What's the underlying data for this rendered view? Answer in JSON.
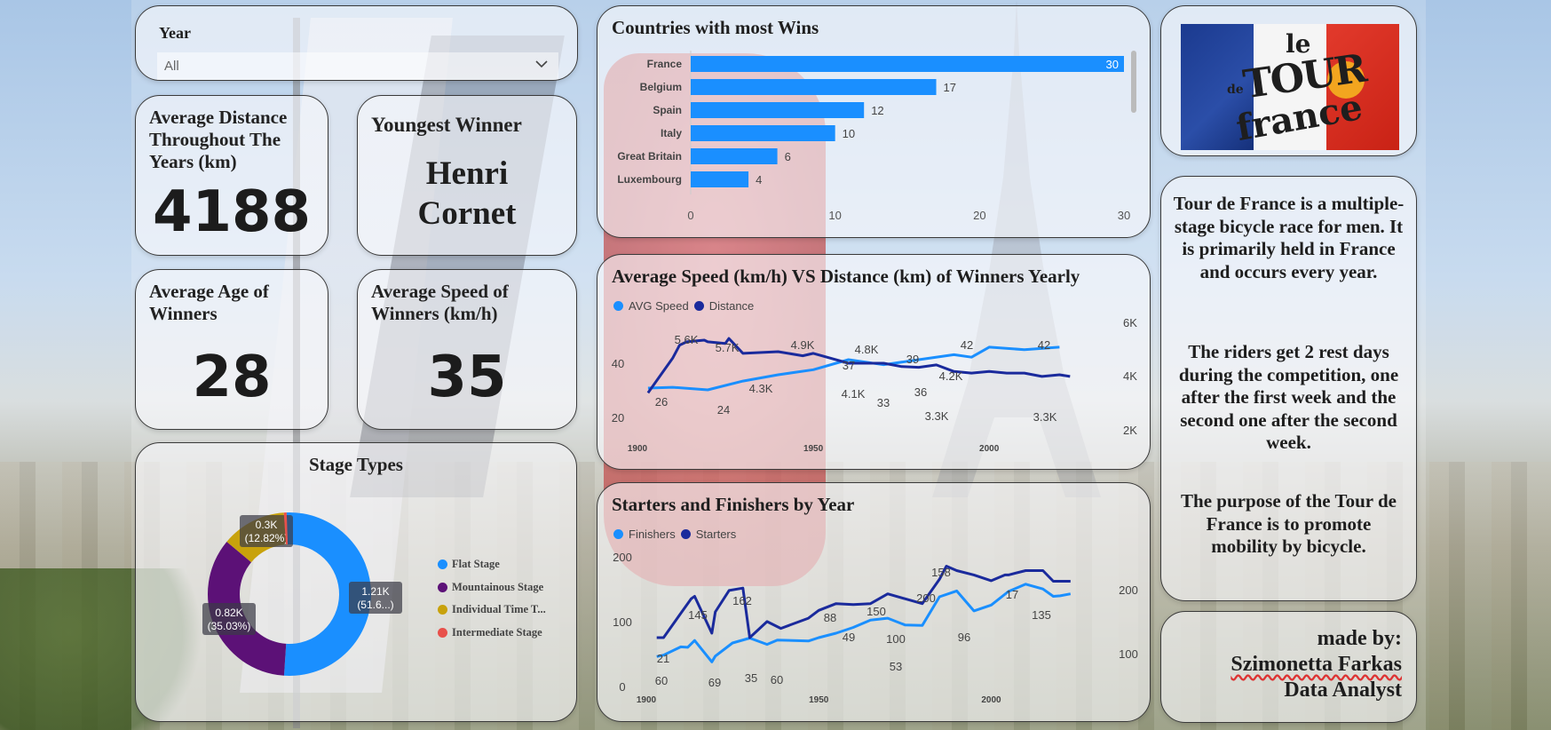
{
  "slicer": {
    "label": "Year",
    "value": "All"
  },
  "kpis": {
    "avg_distance": {
      "title": "Average Distance Throughout The Years (km)",
      "value": "4188"
    },
    "youngest_winner": {
      "title": "Youngest Winner",
      "value_line1": "Henri",
      "value_line2": "Cornet"
    },
    "avg_age": {
      "title": "Average Age of Winners",
      "value": "28"
    },
    "avg_speed": {
      "title": "Average Speed of Winners (km/h)",
      "value": "35"
    }
  },
  "stage_types": {
    "title": "Stage Types",
    "legend": [
      "Flat Stage",
      "Mountainous Stage",
      "Individual Time T...",
      "Intermediate Stage"
    ],
    "colors": [
      "#1a8fff",
      "#5c1177",
      "#c8a20c",
      "#e8504a"
    ],
    "slices": [
      {
        "name": "Flat Stage",
        "value": 51.6,
        "label_l1": "1.21K",
        "label_l2": "(51.6...)"
      },
      {
        "name": "Mountainous Stage",
        "value": 35.03,
        "label_l1": "0.82K",
        "label_l2": "(35.03%)"
      },
      {
        "name": "Individual Time Trial",
        "value": 12.82,
        "label_l1": "0.3K",
        "label_l2": "(12.82%)"
      },
      {
        "name": "Intermediate Stage",
        "value": 0.55,
        "label_l1": "",
        "label_l2": ""
      }
    ]
  },
  "wins": {
    "title": "Countries with most Wins",
    "categories": [
      "France",
      "Belgium",
      "Spain",
      "Italy",
      "Great Britain",
      "Luxembourg"
    ],
    "values": [
      30,
      17,
      12,
      10,
      6,
      4
    ],
    "value_labels": [
      "30",
      "17",
      "12",
      "10",
      "6",
      "4"
    ],
    "ticks": [
      "0",
      "10",
      "20",
      "30"
    ],
    "color": "#1a8fff"
  },
  "speed_distance": {
    "title": "Average Speed (km/h) VS Distance (km) of Winners Yearly",
    "legend": [
      "AVG Speed",
      "Distance"
    ],
    "colors": [
      "#1a8fff",
      "#1a2a9c"
    ],
    "left_ticks": [
      "40",
      "20"
    ],
    "right_ticks": [
      "6K",
      "4K",
      "2K"
    ],
    "x_ticks": [
      "1900",
      "1950",
      "2000"
    ],
    "labels": [
      "26",
      "24",
      "4.3K",
      "5.6K",
      "5.7K",
      "4.9K",
      "37",
      "4.8K",
      "39",
      "42",
      "42",
      "4.1K",
      "33",
      "36",
      "4.2K",
      "3.3K",
      "3.3K"
    ],
    "speed_points": [
      [
        1903,
        25.7
      ],
      [
        1910,
        26
      ],
      [
        1920,
        25
      ],
      [
        1930,
        28.5
      ],
      [
        1940,
        31
      ],
      [
        1950,
        33
      ],
      [
        1960,
        37
      ],
      [
        1970,
        35
      ],
      [
        1980,
        37
      ],
      [
        1990,
        39
      ],
      [
        1995,
        38
      ],
      [
        2000,
        42
      ],
      [
        2010,
        41
      ],
      [
        2020,
        42
      ]
    ],
    "distance_points": [
      [
        1903,
        2400
      ],
      [
        1905,
        3000
      ],
      [
        1910,
        4500
      ],
      [
        1912,
        5300
      ],
      [
        1914,
        5500
      ],
      [
        1919,
        5600
      ],
      [
        1920,
        5500
      ],
      [
        1925,
        5400
      ],
      [
        1926,
        5700
      ],
      [
        1930,
        4800
      ],
      [
        1940,
        4900
      ],
      [
        1947,
        4650
      ],
      [
        1950,
        4800
      ],
      [
        1955,
        4500
      ],
      [
        1960,
        4200
      ],
      [
        1965,
        4200
      ],
      [
        1970,
        4200
      ],
      [
        1975,
        4000
      ],
      [
        1980,
        3950
      ],
      [
        1985,
        4100
      ],
      [
        1990,
        3700
      ],
      [
        1995,
        3600
      ],
      [
        2000,
        3700
      ],
      [
        2005,
        3600
      ],
      [
        2010,
        3600
      ],
      [
        2015,
        3400
      ],
      [
        2020,
        3500
      ],
      [
        2023,
        3400
      ]
    ]
  },
  "starters": {
    "title": "Starters and Finishers by Year",
    "legend": [
      "Finishers",
      "Starters"
    ],
    "colors": [
      "#1a8fff",
      "#1a2a9c"
    ],
    "left_ticks": [
      "200",
      "100",
      "0"
    ],
    "right_ticks": [
      "200",
      "100"
    ],
    "x_ticks": [
      "1900",
      "1950",
      "2000"
    ],
    "labels": [
      "60",
      "21",
      "145",
      "69",
      "162",
      "35",
      "60",
      "88",
      "150",
      "49",
      "100",
      "53",
      "158",
      "200",
      "96",
      "17",
      "135"
    ],
    "finisher_points": [
      [
        1903,
        21
      ],
      [
        1905,
        24
      ],
      [
        1910,
        41
      ],
      [
        1912,
        40
      ],
      [
        1914,
        54
      ],
      [
        1919,
        10
      ],
      [
        1920,
        22
      ],
      [
        1925,
        49
      ],
      [
        1930,
        59
      ],
      [
        1935,
        46
      ],
      [
        1938,
        55
      ],
      [
        1947,
        53
      ],
      [
        1950,
        60
      ],
      [
        1955,
        69
      ],
      [
        1960,
        81
      ],
      [
        1965,
        96
      ],
      [
        1970,
        100
      ],
      [
        1975,
        86
      ],
      [
        1980,
        85
      ],
      [
        1985,
        144
      ],
      [
        1990,
        156
      ],
      [
        1995,
        115
      ],
      [
        2000,
        127
      ],
      [
        2005,
        155
      ],
      [
        2010,
        170
      ],
      [
        2015,
        160
      ],
      [
        2018,
        145
      ],
      [
        2020,
        146
      ],
      [
        2023,
        150
      ]
    ],
    "starter_points": [
      [
        1903,
        60
      ],
      [
        1905,
        60
      ],
      [
        1910,
        110
      ],
      [
        1913,
        140
      ],
      [
        1914,
        145
      ],
      [
        1919,
        69
      ],
      [
        1920,
        113
      ],
      [
        1924,
        157
      ],
      [
        1928,
        162
      ],
      [
        1930,
        60
      ],
      [
        1935,
        93
      ],
      [
        1939,
        79
      ],
      [
        1947,
        100
      ],
      [
        1950,
        116
      ],
      [
        1955,
        130
      ],
      [
        1960,
        128
      ],
      [
        1965,
        130
      ],
      [
        1970,
        150
      ],
      [
        1975,
        140
      ],
      [
        1980,
        130
      ],
      [
        1985,
        180
      ],
      [
        1987,
        207
      ],
      [
        1990,
        198
      ],
      [
        1995,
        189
      ],
      [
        2000,
        177
      ],
      [
        2004,
        189
      ],
      [
        2005,
        189
      ],
      [
        2010,
        198
      ],
      [
        2015,
        198
      ],
      [
        2018,
        176
      ],
      [
        2020,
        176
      ],
      [
        2023,
        176
      ]
    ]
  },
  "info": {
    "p1": "Tour de France is a multiple-stage bicycle race for men. It is primarily held in France and occurs every year.",
    "p2": "The riders get 2 rest days during the competition, one after the first week and the second one after the second week.",
    "p3": "The purpose of the Tour de France is to promote mobility by bicycle."
  },
  "credits": {
    "line1": "made by:",
    "line2": "Szimonetta Farkas",
    "line3": "Data Analyst"
  },
  "logo": {
    "line1": "le",
    "line2": "TOUR",
    "line3": "de",
    "line4": "france"
  }
}
